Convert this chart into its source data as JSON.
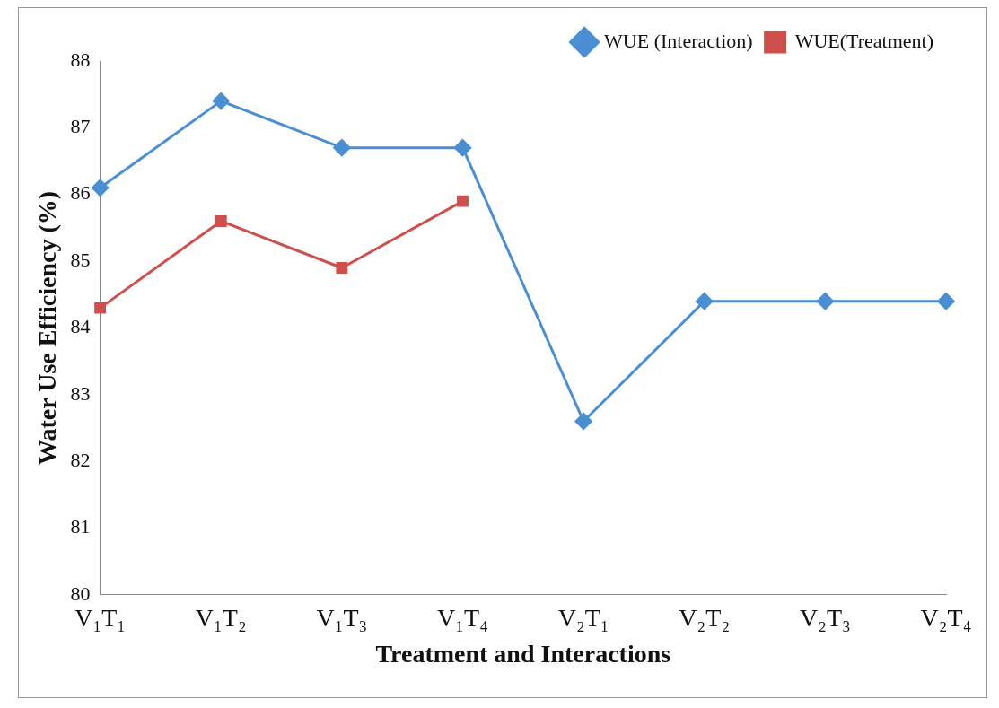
{
  "chart_data": {
    "type": "line",
    "xlabel": "Treatment and Interactions",
    "ylabel": "Water Use Efficiency (%)",
    "categories": [
      "V₁T₁",
      "V₁T₂",
      "V₁T₃",
      "V₁T₄",
      "V₂T₁",
      "V₂T₂",
      "V₂T₃",
      "V₂T₄"
    ],
    "series": [
      {
        "name": "WUE (Interaction)",
        "color": "#4a8fd4",
        "marker": "diamond",
        "values": [
          86.1,
          87.4,
          86.7,
          86.7,
          82.6,
          84.4,
          84.4,
          84.4
        ]
      },
      {
        "name": "WUE(Treatment)",
        "color": "#cf4f4c",
        "marker": "square",
        "values": [
          84.3,
          85.6,
          84.9,
          85.9,
          null,
          null,
          null,
          null
        ]
      }
    ],
    "ylim": [
      80,
      88
    ],
    "yticks": [
      80,
      81,
      82,
      83,
      84,
      85,
      86,
      87,
      88
    ],
    "grid": false,
    "legend": "top right",
    "line_style": "solid"
  }
}
